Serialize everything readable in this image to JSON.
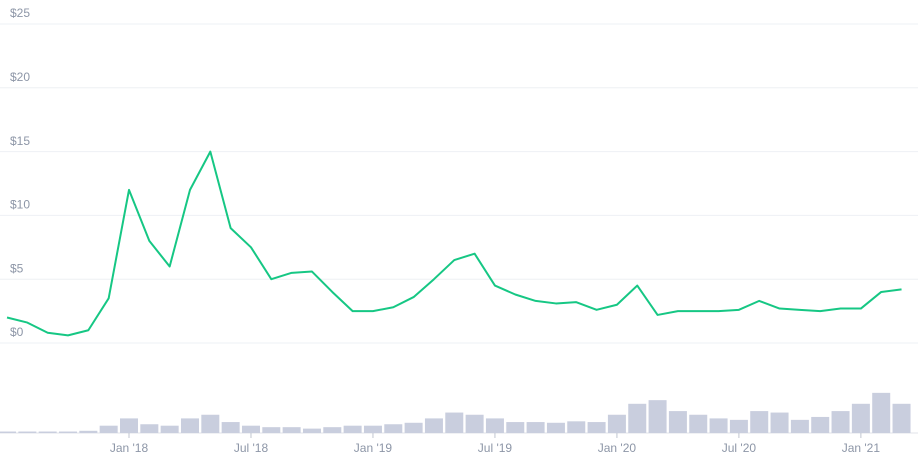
{
  "chart_data": {
    "type": "line",
    "x": [
      "2017-07",
      "2017-08",
      "2017-09",
      "2017-10",
      "2017-11",
      "2017-12",
      "2018-01",
      "2018-02",
      "2018-03",
      "2018-04",
      "2018-05",
      "2018-06",
      "2018-07",
      "2018-08",
      "2018-09",
      "2018-10",
      "2018-11",
      "2018-12",
      "2019-01",
      "2019-02",
      "2019-03",
      "2019-04",
      "2019-05",
      "2019-06",
      "2019-07",
      "2019-08",
      "2019-09",
      "2019-10",
      "2019-11",
      "2019-12",
      "2020-01",
      "2020-02",
      "2020-03",
      "2020-04",
      "2020-05",
      "2020-06",
      "2020-07",
      "2020-08",
      "2020-09",
      "2020-10",
      "2020-11",
      "2020-12",
      "2021-01",
      "2021-02",
      "2021-03"
    ],
    "values": [
      2.0,
      1.6,
      0.8,
      0.6,
      1.0,
      3.5,
      12,
      8,
      6,
      12,
      15,
      9,
      7.5,
      5,
      5.5,
      5.6,
      4,
      2.5,
      2.5,
      2.8,
      3.6,
      5,
      6.5,
      7,
      4.5,
      3.8,
      3.3,
      3.1,
      3.2,
      2.6,
      3,
      4.5,
      2.2,
      2.5,
      2.5,
      2.5,
      2.6,
      3.3,
      2.7,
      2.6,
      2.5,
      2.7,
      2.7,
      4,
      4.2
    ],
    "color": "#16c784",
    "volume": [
      2,
      2,
      2,
      2,
      3,
      10,
      20,
      12,
      10,
      20,
      25,
      15,
      10,
      8,
      8,
      6,
      8,
      10,
      10,
      12,
      14,
      20,
      28,
      25,
      20,
      15,
      15,
      14,
      16,
      15,
      25,
      40,
      45,
      30,
      25,
      20,
      18,
      30,
      28,
      18,
      22,
      30,
      40,
      55,
      40
    ],
    "volume_color": "#c9cede",
    "volume_lim": [
      0,
      100
    ],
    "ylim": [
      0,
      25
    ],
    "yticks": [
      {
        "value": 0,
        "label": "$0"
      },
      {
        "value": 5,
        "label": "$5"
      },
      {
        "value": 10,
        "label": "$10"
      },
      {
        "value": 15,
        "label": "$15"
      },
      {
        "value": 20,
        "label": "$20"
      },
      {
        "value": 25,
        "label": "$25"
      }
    ],
    "xticks": [
      {
        "value": "2018-01",
        "label": "Jan '18"
      },
      {
        "value": "2018-07",
        "label": "Jul '18"
      },
      {
        "value": "2019-01",
        "label": "Jan '19"
      },
      {
        "value": "2019-07",
        "label": "Jul '19"
      },
      {
        "value": "2020-01",
        "label": "Jan '20"
      },
      {
        "value": "2020-07",
        "label": "Jul '20"
      },
      {
        "value": "2021-01",
        "label": "Jan '21"
      }
    ],
    "grid": true
  }
}
